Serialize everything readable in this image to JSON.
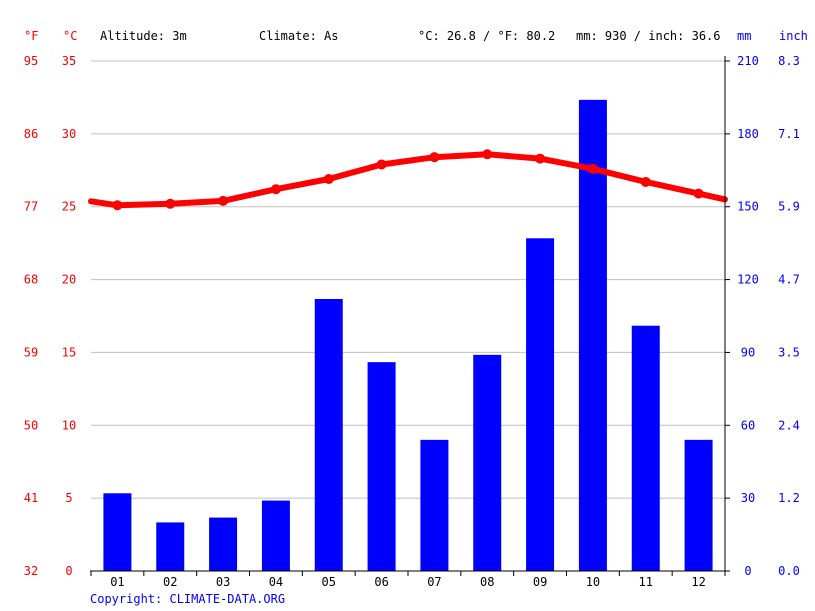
{
  "header": {
    "unit_f": "°F",
    "unit_c": "°C",
    "altitude": "Altitude: 3m",
    "climate": "Climate: As",
    "temp_avg": "°C: 26.8 / °F: 80.2",
    "precip_total": "mm: 930 / inch: 36.6",
    "unit_mm": "mm",
    "unit_inch": "inch"
  },
  "copyright": "Copyright: CLIMATE-DATA.ORG",
  "colors": {
    "temperature": "#ff0000",
    "precipitation": "#0000ff",
    "grid": "#c0c0c0"
  },
  "chart_data": {
    "type": "bar+line",
    "categories": [
      "01",
      "02",
      "03",
      "04",
      "05",
      "06",
      "07",
      "08",
      "09",
      "10",
      "11",
      "12"
    ],
    "series": [
      {
        "type": "bar",
        "axis": "right",
        "unit": "mm",
        "values": [
          32,
          20,
          22,
          29,
          112,
          86,
          54,
          89,
          137,
          194,
          101,
          54
        ]
      },
      {
        "type": "line",
        "axis": "left",
        "unit": "°C",
        "values": [
          25.1,
          25.2,
          25.4,
          26.2,
          26.9,
          27.9,
          28.4,
          28.6,
          28.3,
          27.6,
          26.7,
          25.9
        ]
      }
    ],
    "axes": {
      "celsius": {
        "ticks": [
          "0",
          "5",
          "10",
          "15",
          "20",
          "25",
          "30",
          "35"
        ],
        "range": [
          0,
          35
        ]
      },
      "fahrenheit": {
        "ticks": [
          "32",
          "41",
          "50",
          "59",
          "68",
          "77",
          "86",
          "95"
        ]
      },
      "mm": {
        "ticks": [
          "0",
          "30",
          "60",
          "90",
          "120",
          "150",
          "180",
          "210"
        ],
        "range": [
          0,
          210
        ]
      },
      "inch": {
        "ticks": [
          "0.0",
          "1.2",
          "2.4",
          "3.5",
          "4.7",
          "5.9",
          "7.1",
          "8.3"
        ]
      }
    },
    "grid": true
  }
}
